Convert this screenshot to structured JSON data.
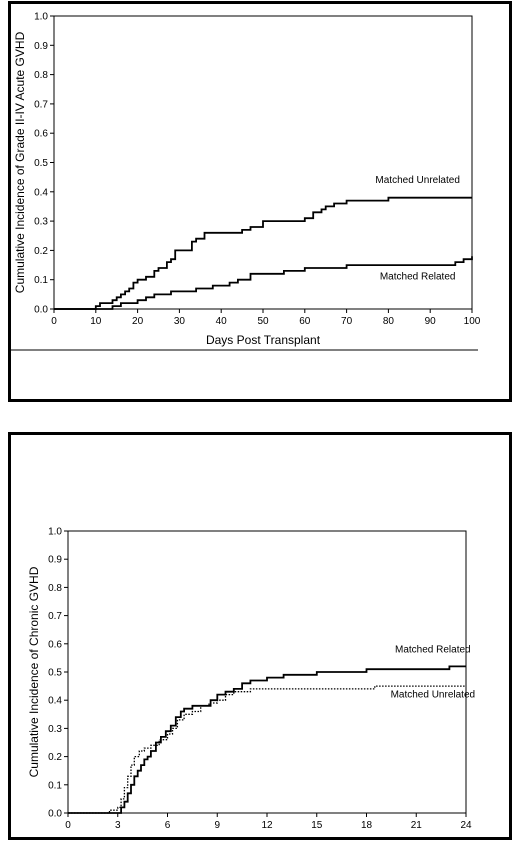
{
  "chart_data": [
    {
      "type": "line",
      "title": "",
      "xlabel": "Days Post Transplant",
      "ylabel": "Cumulative Incidence of Grade II-IV Acute GVHD",
      "xlim": [
        0,
        100
      ],
      "ylim": [
        0,
        1.0
      ],
      "x_ticks": [
        0,
        10,
        20,
        30,
        40,
        50,
        60,
        70,
        80,
        90,
        100
      ],
      "y_ticks": [
        0.0,
        0.1,
        0.2,
        0.3,
        0.4,
        0.5,
        0.6,
        0.7,
        0.8,
        0.9,
        1.0
      ],
      "x_tick_labels": [
        "0",
        "10",
        "20",
        "30",
        "40",
        "50",
        "60",
        "70",
        "80",
        "90",
        "100"
      ],
      "y_tick_labels": [
        "0.0",
        "0.1",
        "0.2",
        "0.3",
        "0.4",
        "0.5",
        "0.6",
        "0.7",
        "0.8",
        "0.9",
        "1.0"
      ],
      "grid": false,
      "step": true,
      "series": [
        {
          "name": "Matched Unrelated",
          "style": "solid",
          "x": [
            0,
            10,
            11,
            13,
            14,
            15,
            16,
            17,
            18,
            19,
            20,
            22,
            24,
            25,
            27,
            28,
            29,
            30,
            33,
            34,
            36,
            40,
            45,
            47,
            50,
            55,
            60,
            62,
            64,
            65,
            67,
            70,
            80,
            100
          ],
          "y": [
            0,
            0.01,
            0.02,
            0.02,
            0.03,
            0.04,
            0.05,
            0.06,
            0.07,
            0.09,
            0.1,
            0.11,
            0.13,
            0.14,
            0.16,
            0.17,
            0.2,
            0.2,
            0.23,
            0.24,
            0.26,
            0.26,
            0.27,
            0.28,
            0.3,
            0.3,
            0.31,
            0.33,
            0.34,
            0.35,
            0.36,
            0.37,
            0.38,
            0.38
          ]
        },
        {
          "name": "Matched Related",
          "style": "solid",
          "x": [
            0,
            13,
            14,
            16,
            17,
            20,
            22,
            24,
            28,
            34,
            38,
            42,
            44,
            47,
            50,
            55,
            60,
            65,
            70,
            80,
            90,
            96,
            98,
            100
          ],
          "y": [
            0,
            0.0,
            0.01,
            0.02,
            0.02,
            0.03,
            0.04,
            0.05,
            0.06,
            0.07,
            0.08,
            0.09,
            0.1,
            0.12,
            0.12,
            0.13,
            0.14,
            0.14,
            0.15,
            0.15,
            0.15,
            0.16,
            0.17,
            0.18
          ]
        }
      ],
      "annotations": [
        {
          "text": "Matched Unrelated",
          "x": 87,
          "y": 0.43
        },
        {
          "text": "Matched Related",
          "x": 87,
          "y": 0.1
        }
      ]
    },
    {
      "type": "line",
      "title": "",
      "xlabel": "",
      "ylabel": "Cumulative Incidence of Chronic GVHD",
      "xlim": [
        0,
        24
      ],
      "ylim": [
        0,
        1.0
      ],
      "x_ticks": [
        0,
        3,
        6,
        9,
        12,
        15,
        18,
        21,
        24
      ],
      "y_ticks": [
        0.0,
        0.1,
        0.2,
        0.3,
        0.4,
        0.5,
        0.6,
        0.7,
        0.8,
        0.9,
        1.0
      ],
      "x_tick_labels": [
        "0",
        "3",
        "6",
        "9",
        "12",
        "15",
        "18",
        "21",
        "24"
      ],
      "y_tick_labels": [
        "0.0",
        "0.1",
        "0.2",
        "0.3",
        "0.4",
        "0.5",
        "0.6",
        "0.7",
        "0.8",
        "0.9",
        "1.0"
      ],
      "grid": false,
      "step": true,
      "series": [
        {
          "name": "Matched Related",
          "style": "solid",
          "x": [
            0,
            3.2,
            3.4,
            3.6,
            3.8,
            4.0,
            4.2,
            4.4,
            4.6,
            4.8,
            5.0,
            5.3,
            5.6,
            5.9,
            6.2,
            6.5,
            6.8,
            7.0,
            7.5,
            8.0,
            8.6,
            9.0,
            9.5,
            10.0,
            10.5,
            11.0,
            12.0,
            13.0,
            15.0,
            18.0,
            21.0,
            23.0,
            24.0
          ],
          "y": [
            0,
            0.02,
            0.04,
            0.07,
            0.1,
            0.13,
            0.15,
            0.17,
            0.19,
            0.2,
            0.22,
            0.25,
            0.27,
            0.29,
            0.31,
            0.34,
            0.36,
            0.37,
            0.38,
            0.38,
            0.4,
            0.42,
            0.43,
            0.44,
            0.46,
            0.47,
            0.48,
            0.49,
            0.5,
            0.51,
            0.51,
            0.52,
            0.52
          ]
        },
        {
          "name": "Matched Unrelated",
          "style": "dotted",
          "x": [
            0,
            2.5,
            3.0,
            3.2,
            3.4,
            3.6,
            3.8,
            4.0,
            4.3,
            4.6,
            5.0,
            5.5,
            6.0,
            6.3,
            6.6,
            7.0,
            7.5,
            8.0,
            8.5,
            9.0,
            9.5,
            10.0,
            11.0,
            12.0,
            15.0,
            18.5,
            24.0
          ],
          "y": [
            0,
            0.01,
            0.02,
            0.05,
            0.09,
            0.13,
            0.17,
            0.2,
            0.22,
            0.23,
            0.24,
            0.26,
            0.28,
            0.3,
            0.33,
            0.35,
            0.36,
            0.38,
            0.39,
            0.4,
            0.42,
            0.43,
            0.44,
            0.44,
            0.44,
            0.45,
            0.45
          ]
        }
      ],
      "annotations": [
        {
          "text": "Matched Related",
          "x": 22,
          "y": 0.57
        },
        {
          "text": "Matched Unrelated",
          "x": 22,
          "y": 0.41
        }
      ]
    }
  ]
}
